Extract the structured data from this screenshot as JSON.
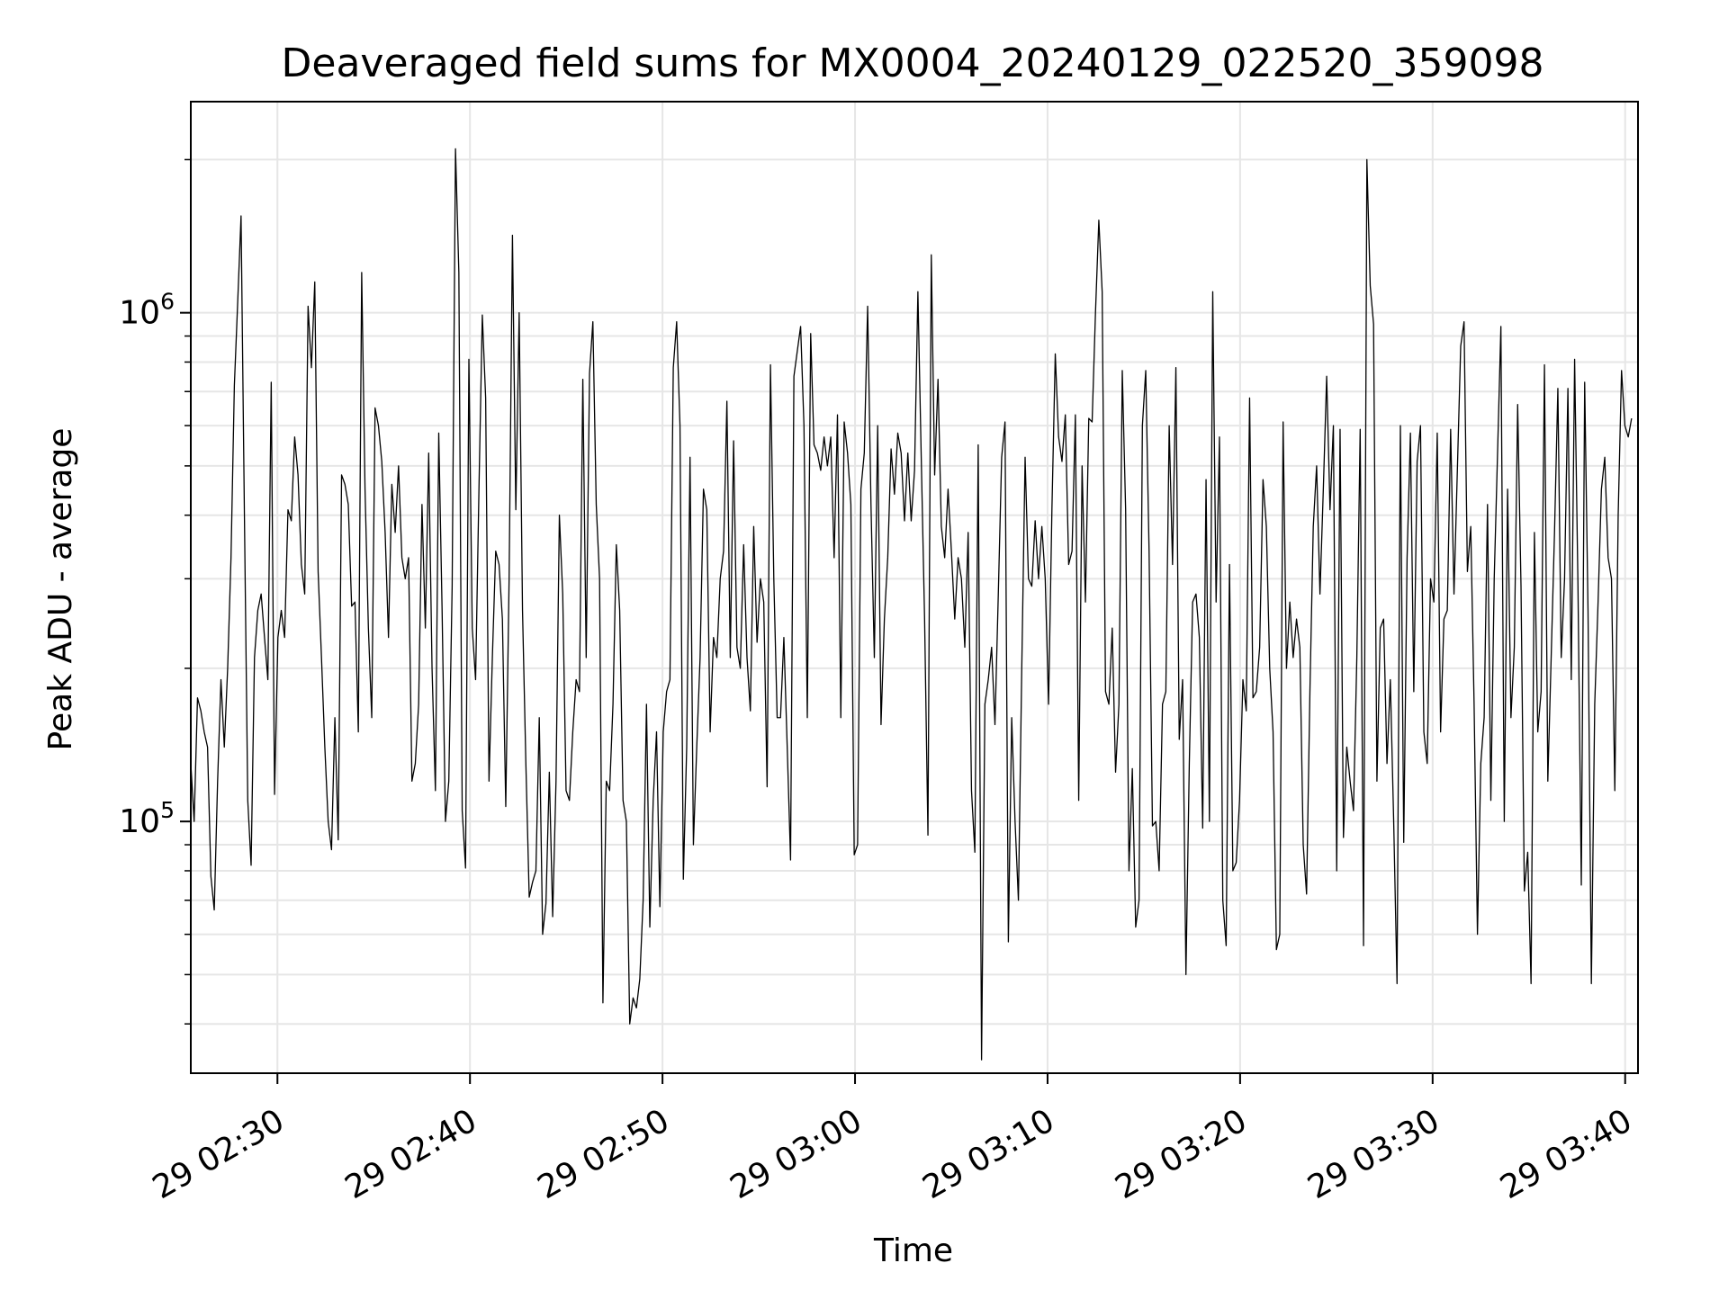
{
  "chart_data": {
    "type": "line",
    "title": "Deaveraged field sums for MX0004_20240129_022520_359098",
    "xlabel": "Time",
    "ylabel": "Peak ADU - average",
    "x_tick_labels": [
      "29 02:30",
      "29 02:40",
      "29 02:50",
      "29 03:00",
      "29 03:10",
      "29 03:20",
      "29 03:30",
      "29 03:40"
    ],
    "y_tick_labels": [
      {
        "base": "10",
        "exp": "5"
      },
      {
        "base": "10",
        "exp": "6"
      }
    ],
    "y_scale": "log",
    "ylim": [
      32000,
      2600000
    ],
    "xlim": [
      "02:25:30",
      "03:40:40"
    ],
    "grid": true,
    "line_color": "#000000",
    "grid_color": "#e6e6e6",
    "series": [
      {
        "t_start": "02:25:30",
        "t_end": "03:40:20",
        "values": [
          130000,
          100000,
          175000,
          165000,
          150000,
          140000,
          78000,
          67000,
          120000,
          190000,
          140000,
          200000,
          330000,
          720000,
          1050000,
          1550000,
          400000,
          110000,
          82000,
          210000,
          260000,
          280000,
          230000,
          190000,
          730000,
          113000,
          230000,
          260000,
          230000,
          410000,
          390000,
          570000,
          480000,
          320000,
          280000,
          1030000,
          780000,
          1150000,
          310000,
          210000,
          140000,
          100000,
          88000,
          160000,
          92000,
          480000,
          460000,
          420000,
          265000,
          270000,
          150000,
          1200000,
          450000,
          240000,
          160000,
          650000,
          600000,
          510000,
          370000,
          230000,
          460000,
          370000,
          500000,
          330000,
          300000,
          330000,
          120000,
          130000,
          170000,
          420000,
          240000,
          530000,
          200000,
          115000,
          580000,
          260000,
          100000,
          120000,
          290000,
          2100000,
          1200000,
          105000,
          81000,
          810000,
          240000,
          190000,
          450000,
          990000,
          680000,
          120000,
          210000,
          340000,
          320000,
          250000,
          107000,
          300000,
          1420000,
          410000,
          1000000,
          260000,
          130000,
          71000,
          76000,
          80000,
          160000,
          60000,
          69000,
          125000,
          65000,
          120000,
          400000,
          280000,
          115000,
          110000,
          150000,
          190000,
          180000,
          740000,
          210000,
          760000,
          960000,
          420000,
          300000,
          44000,
          120000,
          115000,
          170000,
          350000,
          260000,
          110000,
          100000,
          40000,
          45000,
          43000,
          49000,
          70000,
          170000,
          62000,
          110000,
          150000,
          68000,
          150000,
          180000,
          190000,
          780000,
          960000,
          600000,
          77000,
          140000,
          520000,
          90000,
          140000,
          210000,
          450000,
          410000,
          150000,
          230000,
          210000,
          300000,
          340000,
          670000,
          210000,
          560000,
          220000,
          200000,
          350000,
          210000,
          165000,
          380000,
          225000,
          300000,
          270000,
          117000,
          790000,
          300000,
          160000,
          160000,
          230000,
          140000,
          84000,
          750000,
          840000,
          940000,
          600000,
          160000,
          910000,
          550000,
          530000,
          490000,
          570000,
          500000,
          570000,
          330000,
          630000,
          160000,
          610000,
          530000,
          420000,
          86000,
          90000,
          450000,
          530000,
          1030000,
          420000,
          210000,
          600000,
          155000,
          250000,
          330000,
          540000,
          440000,
          580000,
          530000,
          390000,
          530000,
          390000,
          490000,
          1100000,
          520000,
          250000,
          94000,
          1300000,
          480000,
          740000,
          380000,
          330000,
          450000,
          340000,
          250000,
          330000,
          300000,
          220000,
          370000,
          115000,
          87000,
          550000,
          34000,
          170000,
          190000,
          220000,
          155000,
          280000,
          520000,
          610000,
          58000,
          160000,
          100000,
          70000,
          200000,
          520000,
          300000,
          290000,
          390000,
          300000,
          380000,
          300000,
          170000,
          410000,
          830000,
          570000,
          510000,
          630000,
          320000,
          340000,
          630000,
          110000,
          500000,
          270000,
          620000,
          610000,
          1000000,
          1520000,
          1100000,
          180000,
          170000,
          240000,
          125000,
          170000,
          770000,
          410000,
          80000,
          127000,
          62000,
          70000,
          600000,
          770000,
          340000,
          98000,
          100000,
          80000,
          170000,
          180000,
          600000,
          320000,
          780000,
          145000,
          190000,
          50000,
          130000,
          270000,
          280000,
          230000,
          97000,
          470000,
          100000,
          1100000,
          270000,
          570000,
          70000,
          57000,
          320000,
          80000,
          83000,
          110000,
          190000,
          165000,
          680000,
          175000,
          180000,
          220000,
          470000,
          380000,
          200000,
          150000,
          56000,
          60000,
          610000,
          200000,
          270000,
          210000,
          250000,
          220000,
          90000,
          72000,
          180000,
          380000,
          500000,
          280000,
          450000,
          750000,
          410000,
          600000,
          80000,
          590000,
          93000,
          140000,
          120000,
          105000,
          210000,
          590000,
          57000,
          2000000,
          1130000,
          950000,
          120000,
          240000,
          250000,
          130000,
          190000,
          100000,
          48000,
          600000,
          91000,
          330000,
          580000,
          180000,
          510000,
          600000,
          150000,
          130000,
          300000,
          270000,
          580000,
          150000,
          250000,
          260000,
          590000,
          280000,
          490000,
          860000,
          960000,
          310000,
          380000,
          170000,
          60000,
          130000,
          160000,
          420000,
          110000,
          300000,
          530000,
          940000,
          100000,
          450000,
          160000,
          220000,
          660000,
          290000,
          73000,
          87000,
          48000,
          370000,
          150000,
          180000,
          790000,
          120000,
          210000,
          370000,
          710000,
          210000,
          300000,
          710000,
          190000,
          810000,
          290000,
          75000,
          730000,
          260000,
          48000,
          170000,
          270000,
          450000,
          520000,
          330000,
          300000,
          115000,
          400000,
          770000,
          600000,
          570000,
          620000
        ]
      }
    ]
  }
}
